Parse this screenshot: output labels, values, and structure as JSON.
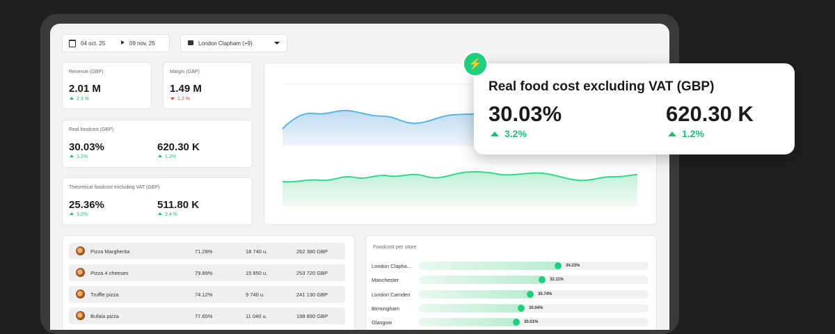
{
  "filters": {
    "date_start": "04 oct. 25",
    "date_end": "09 nov. 25",
    "store": "London Clapham (+9)"
  },
  "kpis": {
    "revenue": {
      "label": "Revenue (GBP)",
      "value": "2.01 M",
      "delta": "2.3 %",
      "direction": "up"
    },
    "margin": {
      "label": "Margin (GBP)",
      "value": "1.49 M",
      "delta": "1.2 %",
      "direction": "down"
    },
    "real_foodcost": {
      "label": "Real foodcost (GBP)",
      "pct": "30.03%",
      "pct_delta": "3.2%",
      "amount": "620.30 K",
      "amount_delta": "1.2%"
    },
    "theoretical_foodcost": {
      "label": "Theoretical foodcost excluding VAT (GBP)",
      "pct": "25.36%",
      "pct_delta": "3.2%",
      "amount": "511.80 K",
      "amount_delta": "3.4 %"
    }
  },
  "tooltip": {
    "title": "Real food cost excluding VAT (GBP)",
    "pct": "30.03%",
    "pct_delta": "3.2%",
    "amount": "620.30 K",
    "amount_delta": "1.2%"
  },
  "products": [
    {
      "name": "Pizza Margherita",
      "rate": "71.28%",
      "units": "18 740 u.",
      "amount": "262 380 GBP"
    },
    {
      "name": "Pizza 4 cheeses",
      "rate": "79.89%",
      "units": "15 850 u.",
      "amount": "253 720 GBP"
    },
    {
      "name": "Truffle pizza",
      "rate": "74.12%",
      "units": "9 740 u.",
      "amount": "241 130 GBP"
    },
    {
      "name": "Bufala pizza",
      "rate": "77.65%",
      "units": "11 040 u.",
      "amount": "198 890 GBP"
    }
  ],
  "foodcost_per_store": {
    "title": "Foodcost per store",
    "stores": [
      {
        "name": "London Clapha...",
        "value": "34.23%",
        "fraction": 0.62
      },
      {
        "name": "Manchester",
        "value": "32.11%",
        "fraction": 0.55
      },
      {
        "name": "London Camden",
        "value": "30.74%",
        "fraction": 0.5
      },
      {
        "name": "Birmingham",
        "value": "30.04%",
        "fraction": 0.46
      },
      {
        "name": "Glasgow",
        "value": "30.01%",
        "fraction": 0.44
      }
    ]
  },
  "colors": {
    "accent_green": "#1fcf7e",
    "up": "#1dbf73",
    "down": "#e0433b",
    "line_blue": "#5ab5e2"
  }
}
